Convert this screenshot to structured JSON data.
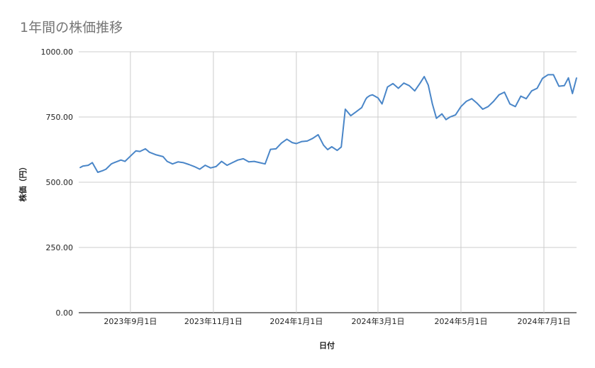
{
  "chart_data": {
    "type": "line",
    "title": "1年間の株価推移",
    "xlabel": "日付",
    "ylabel": "株価（円）",
    "ylim": [
      0,
      1000
    ],
    "yticks": [
      "0.00",
      "250.00",
      "500.00",
      "750.00",
      "1000.00"
    ],
    "xrange": [
      "2023-07-25",
      "2024-07-25"
    ],
    "xticks": [
      {
        "date": "2023-09-01",
        "label": "2023年9月1日"
      },
      {
        "date": "2023-11-01",
        "label": "2023年11月1日"
      },
      {
        "date": "2024-01-01",
        "label": "2024年1月1日"
      },
      {
        "date": "2024-03-01",
        "label": "2024年3月1日"
      },
      {
        "date": "2024-05-01",
        "label": "2024年5月1日"
      },
      {
        "date": "2024-07-01",
        "label": "2024年7月1日"
      }
    ],
    "grid": true,
    "line_color": "#4a86c8",
    "series": [
      {
        "x": [
          "2023-07-26",
          "2023-07-28",
          "2023-08-01",
          "2023-08-04",
          "2023-08-08",
          "2023-08-12",
          "2023-08-14",
          "2023-08-18",
          "2023-08-20",
          "2023-08-25",
          "2023-08-28",
          "2023-09-01",
          "2023-09-05",
          "2023-09-08",
          "2023-09-12",
          "2023-09-15",
          "2023-09-20",
          "2023-09-25",
          "2023-09-28",
          "2023-10-02",
          "2023-10-06",
          "2023-10-10",
          "2023-10-14",
          "2023-10-18",
          "2023-10-22",
          "2023-10-26",
          "2023-10-30",
          "2023-11-03",
          "2023-11-07",
          "2023-11-11",
          "2023-11-15",
          "2023-11-19",
          "2023-11-23",
          "2023-11-27",
          "2023-12-01",
          "2023-12-05",
          "2023-12-09",
          "2023-12-13",
          "2023-12-17",
          "2023-12-21",
          "2023-12-25",
          "2023-12-29",
          "2024-01-01",
          "2024-01-05",
          "2024-01-09",
          "2024-01-13",
          "2024-01-17",
          "2024-01-21",
          "2024-01-24",
          "2024-01-27",
          "2024-01-31",
          "2024-02-03",
          "2024-02-06",
          "2024-02-10",
          "2024-02-14",
          "2024-02-18",
          "2024-02-21",
          "2024-02-22",
          "2024-02-24",
          "2024-02-26",
          "2024-03-01",
          "2024-03-04",
          "2024-03-08",
          "2024-03-12",
          "2024-03-16",
          "2024-03-20",
          "2024-03-24",
          "2024-03-28",
          "2024-04-01",
          "2024-04-04",
          "2024-04-07",
          "2024-04-10",
          "2024-04-13",
          "2024-04-17",
          "2024-04-20",
          "2024-04-23",
          "2024-04-27",
          "2024-05-01",
          "2024-05-05",
          "2024-05-09",
          "2024-05-13",
          "2024-05-17",
          "2024-05-21",
          "2024-05-25",
          "2024-05-29",
          "2024-06-02",
          "2024-06-06",
          "2024-06-10",
          "2024-06-14",
          "2024-06-18",
          "2024-06-22",
          "2024-06-26",
          "2024-06-30",
          "2024-07-04",
          "2024-07-08",
          "2024-07-12",
          "2024-07-16",
          "2024-07-19",
          "2024-07-22",
          "2024-07-25"
        ],
        "values": [
          556,
          562,
          565,
          575,
          538,
          545,
          550,
          570,
          575,
          585,
          580,
          600,
          620,
          618,
          628,
          615,
          605,
          598,
          580,
          570,
          578,
          575,
          568,
          560,
          550,
          565,
          555,
          560,
          580,
          565,
          575,
          585,
          590,
          578,
          580,
          575,
          570,
          626,
          628,
          650,
          665,
          652,
          648,
          656,
          658,
          668,
          682,
          642,
          625,
          636,
          622,
          635,
          780,
          755,
          770,
          786,
          818,
          825,
          832,
          835,
          823,
          800,
          865,
          878,
          860,
          880,
          870,
          850,
          880,
          905,
          872,
          800,
          745,
          762,
          740,
          750,
          758,
          790,
          810,
          820,
          802,
          780,
          790,
          810,
          835,
          845,
          800,
          790,
          830,
          820,
          850,
          860,
          898,
          912,
          912,
          868,
          870,
          900,
          840,
          900
        ]
      }
    ]
  }
}
